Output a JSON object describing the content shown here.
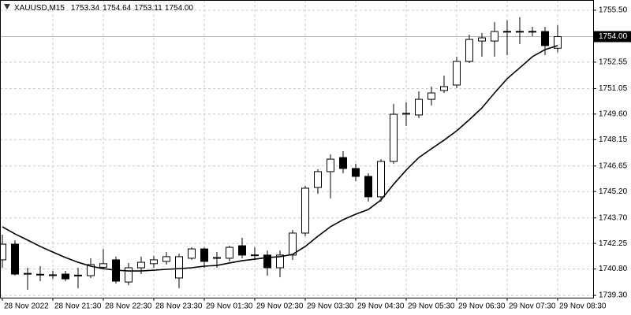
{
  "chart_data": {
    "type": "candlestick",
    "title": "XAUUSD,M15",
    "header_values": [
      1753.34,
      1754.64,
      1753.11,
      {
        "value": 1754,
        "label": "1754.00"
      }
    ],
    "categories": [
      "28 Nov 2022",
      null,
      null,
      null,
      "28 Nov 21:30",
      null,
      null,
      null,
      "28 Nov 22:30",
      null,
      null,
      null,
      "28 Nov 23:30",
      null,
      null,
      null,
      "29 Nov 01:30",
      null,
      null,
      null,
      "29 Nov 02:30",
      null,
      null,
      null,
      "29 Nov 03:30",
      null,
      null,
      null,
      "29 Nov 04:30",
      null,
      null,
      null,
      "29 Nov 05:30",
      null,
      null,
      null,
      "29 Nov 06:30",
      null,
      null,
      null,
      "29 Nov 07:30",
      null,
      null,
      null,
      "29 Nov 08:30"
    ],
    "open": [
      1741.32,
      1742.21,
      1740.51,
      1740.5,
      1740.47,
      1740.51,
      1740.42,
      1740.42,
      1740.9,
      1741.32,
      1740.06,
      1740.87,
      1741.1,
      1741.23,
      1740.29,
      1741.41,
      1741.94,
      1741.45,
      1741.41,
      1742.12,
      1741.59,
      1741.59,
      1740.87,
      1741.59,
      1742.84,
      1745.43,
      1746.33,
      1747.13,
      1746.51,
      1746.06,
      1744.9,
      1746.91,
      1749.6,
      1749.55,
      1750.44,
      1750.94,
      1751.25,
      1752.59,
      1753.75,
      1753.75,
      1754.29,
      1754.3,
      1754.29,
      1754.29,
      1753.34
    ],
    "high": [
      1742.75,
      1742.43,
      1740.87,
      1740.96,
      1740.69,
      1740.69,
      1740.87,
      1741.41,
      1741.94,
      1741.5,
      1741.14,
      1741.5,
      1741.54,
      1741.77,
      1741.67,
      1742.03,
      1742.03,
      1741.77,
      1742.12,
      1742.57,
      1742.03,
      1741.85,
      1741.85,
      1743.02,
      1745.52,
      1746.46,
      1747.31,
      1747.49,
      1746.78,
      1746.24,
      1747.04,
      1750.18,
      1750.27,
      1750.89,
      1751.16,
      1751.79,
      1752.86,
      1754.11,
      1754.2,
      1754.83,
      1754.92,
      1755.1,
      1754.56,
      1754.56,
      1754.64
    ],
    "low": [
      1740.87,
      1740.42,
      1739.62,
      1740.11,
      1740.24,
      1740.11,
      1739.7,
      1740.29,
      1740.78,
      1739.97,
      1739.88,
      1740.51,
      1740.87,
      1741.05,
      1739.71,
      1741.32,
      1740.87,
      1740.87,
      1741.23,
      1741.41,
      1741.32,
      1740.42,
      1740.33,
      1741.32,
      1742.66,
      1745.07,
      1744.81,
      1746.24,
      1745.79,
      1744.63,
      1744.63,
      1746.78,
      1748.92,
      1749.37,
      1750.09,
      1750.8,
      1751.07,
      1752.5,
      1752.86,
      1752.86,
      1752.95,
      1753.58,
      1754.02,
      1752.95,
      1753.11
    ],
    "close": [
      1742.21,
      1740.51,
      1740.55,
      1740.47,
      1740.45,
      1740.24,
      1740.45,
      1741.05,
      1741.1,
      1740.11,
      1740.87,
      1741.18,
      1741.32,
      1741.5,
      1741.5,
      1741.94,
      1741.23,
      1741.41,
      1742.03,
      1741.59,
      1741.6,
      1740.87,
      1741.59,
      1742.84,
      1745.39,
      1746.33,
      1747.04,
      1746.51,
      1746.06,
      1744.9,
      1746.91,
      1749.59,
      1749.64,
      1750.44,
      1750.8,
      1751.16,
      1752.59,
      1753.84,
      1753.93,
      1754.29,
      1754.3,
      1754.29,
      1754.3,
      1753.49,
      1754
    ],
    "overlay": {
      "type": "line",
      "color": "#000000",
      "values": [
        1743.2,
        1742.79,
        1742.44,
        1742.08,
        1741.76,
        1741.45,
        1741.18,
        1740.96,
        1740.82,
        1740.73,
        1740.69,
        1740.69,
        1740.73,
        1740.78,
        1740.82,
        1740.87,
        1740.96,
        1741.0,
        1741.14,
        1741.27,
        1741.36,
        1741.45,
        1741.5,
        1741.63,
        1742.08,
        1742.66,
        1743.2,
        1743.6,
        1743.91,
        1744.18,
        1744.72,
        1745.61,
        1746.42,
        1747.13,
        1747.63,
        1748.12,
        1748.65,
        1749.28,
        1749.95,
        1750.8,
        1751.61,
        1752.23,
        1752.86,
        1753.26,
        1753.49
      ]
    },
    "up_color": "#ffffff",
    "down_color": "#000000",
    "price_line": {
      "value": 1754,
      "label": "1754.00"
    },
    "ylim": [
      1739.17,
      1756.08
    ],
    "yticks": [
      {
        "value": 1755.5,
        "label": "1755.50"
      },
      1752.55,
      1751.05,
      {
        "value": 1749.6,
        "label": "1749.60"
      },
      1748.15,
      1746.65,
      {
        "value": 1745.2,
        "label": "1745.20"
      },
      {
        "value": 1743.7,
        "label": "1743.70"
      },
      1742.25,
      {
        "value": 1740.8,
        "label": "1740.80"
      },
      {
        "value": 1739.3,
        "label": "1739.30"
      }
    ],
    "grid": true
  }
}
